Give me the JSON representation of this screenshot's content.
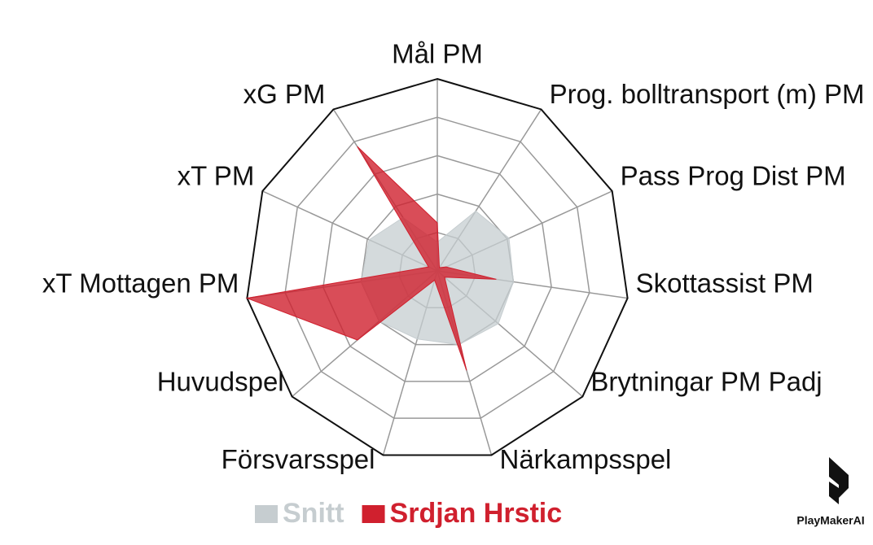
{
  "chart_data": {
    "type": "radar",
    "categories": [
      "Mål PM",
      "Prog. bolltransport (m) PM",
      "Pass Prog Dist PM",
      "Skottassist PM",
      "Brytningar PM Padj",
      "Närkampsspel",
      "Försvarsspel",
      "Huvudspel",
      "xT Mottagen PM",
      "xT PM",
      "xG PM"
    ],
    "rlim": [
      0,
      100
    ],
    "rticks": [
      20,
      40,
      60,
      80,
      100
    ],
    "series": [
      {
        "name": "Snitt",
        "color": "#c6cdd0",
        "values": [
          15,
          37,
          41,
          40,
          42,
          40,
          37,
          40,
          40,
          39,
          33
        ]
      },
      {
        "name": "Srdjan Hrstic",
        "color": "#d0202e",
        "values": [
          25,
          2,
          5,
          31,
          5,
          54,
          5,
          55,
          100,
          5,
          77
        ]
      }
    ],
    "brand": "PlayMakerAI"
  }
}
